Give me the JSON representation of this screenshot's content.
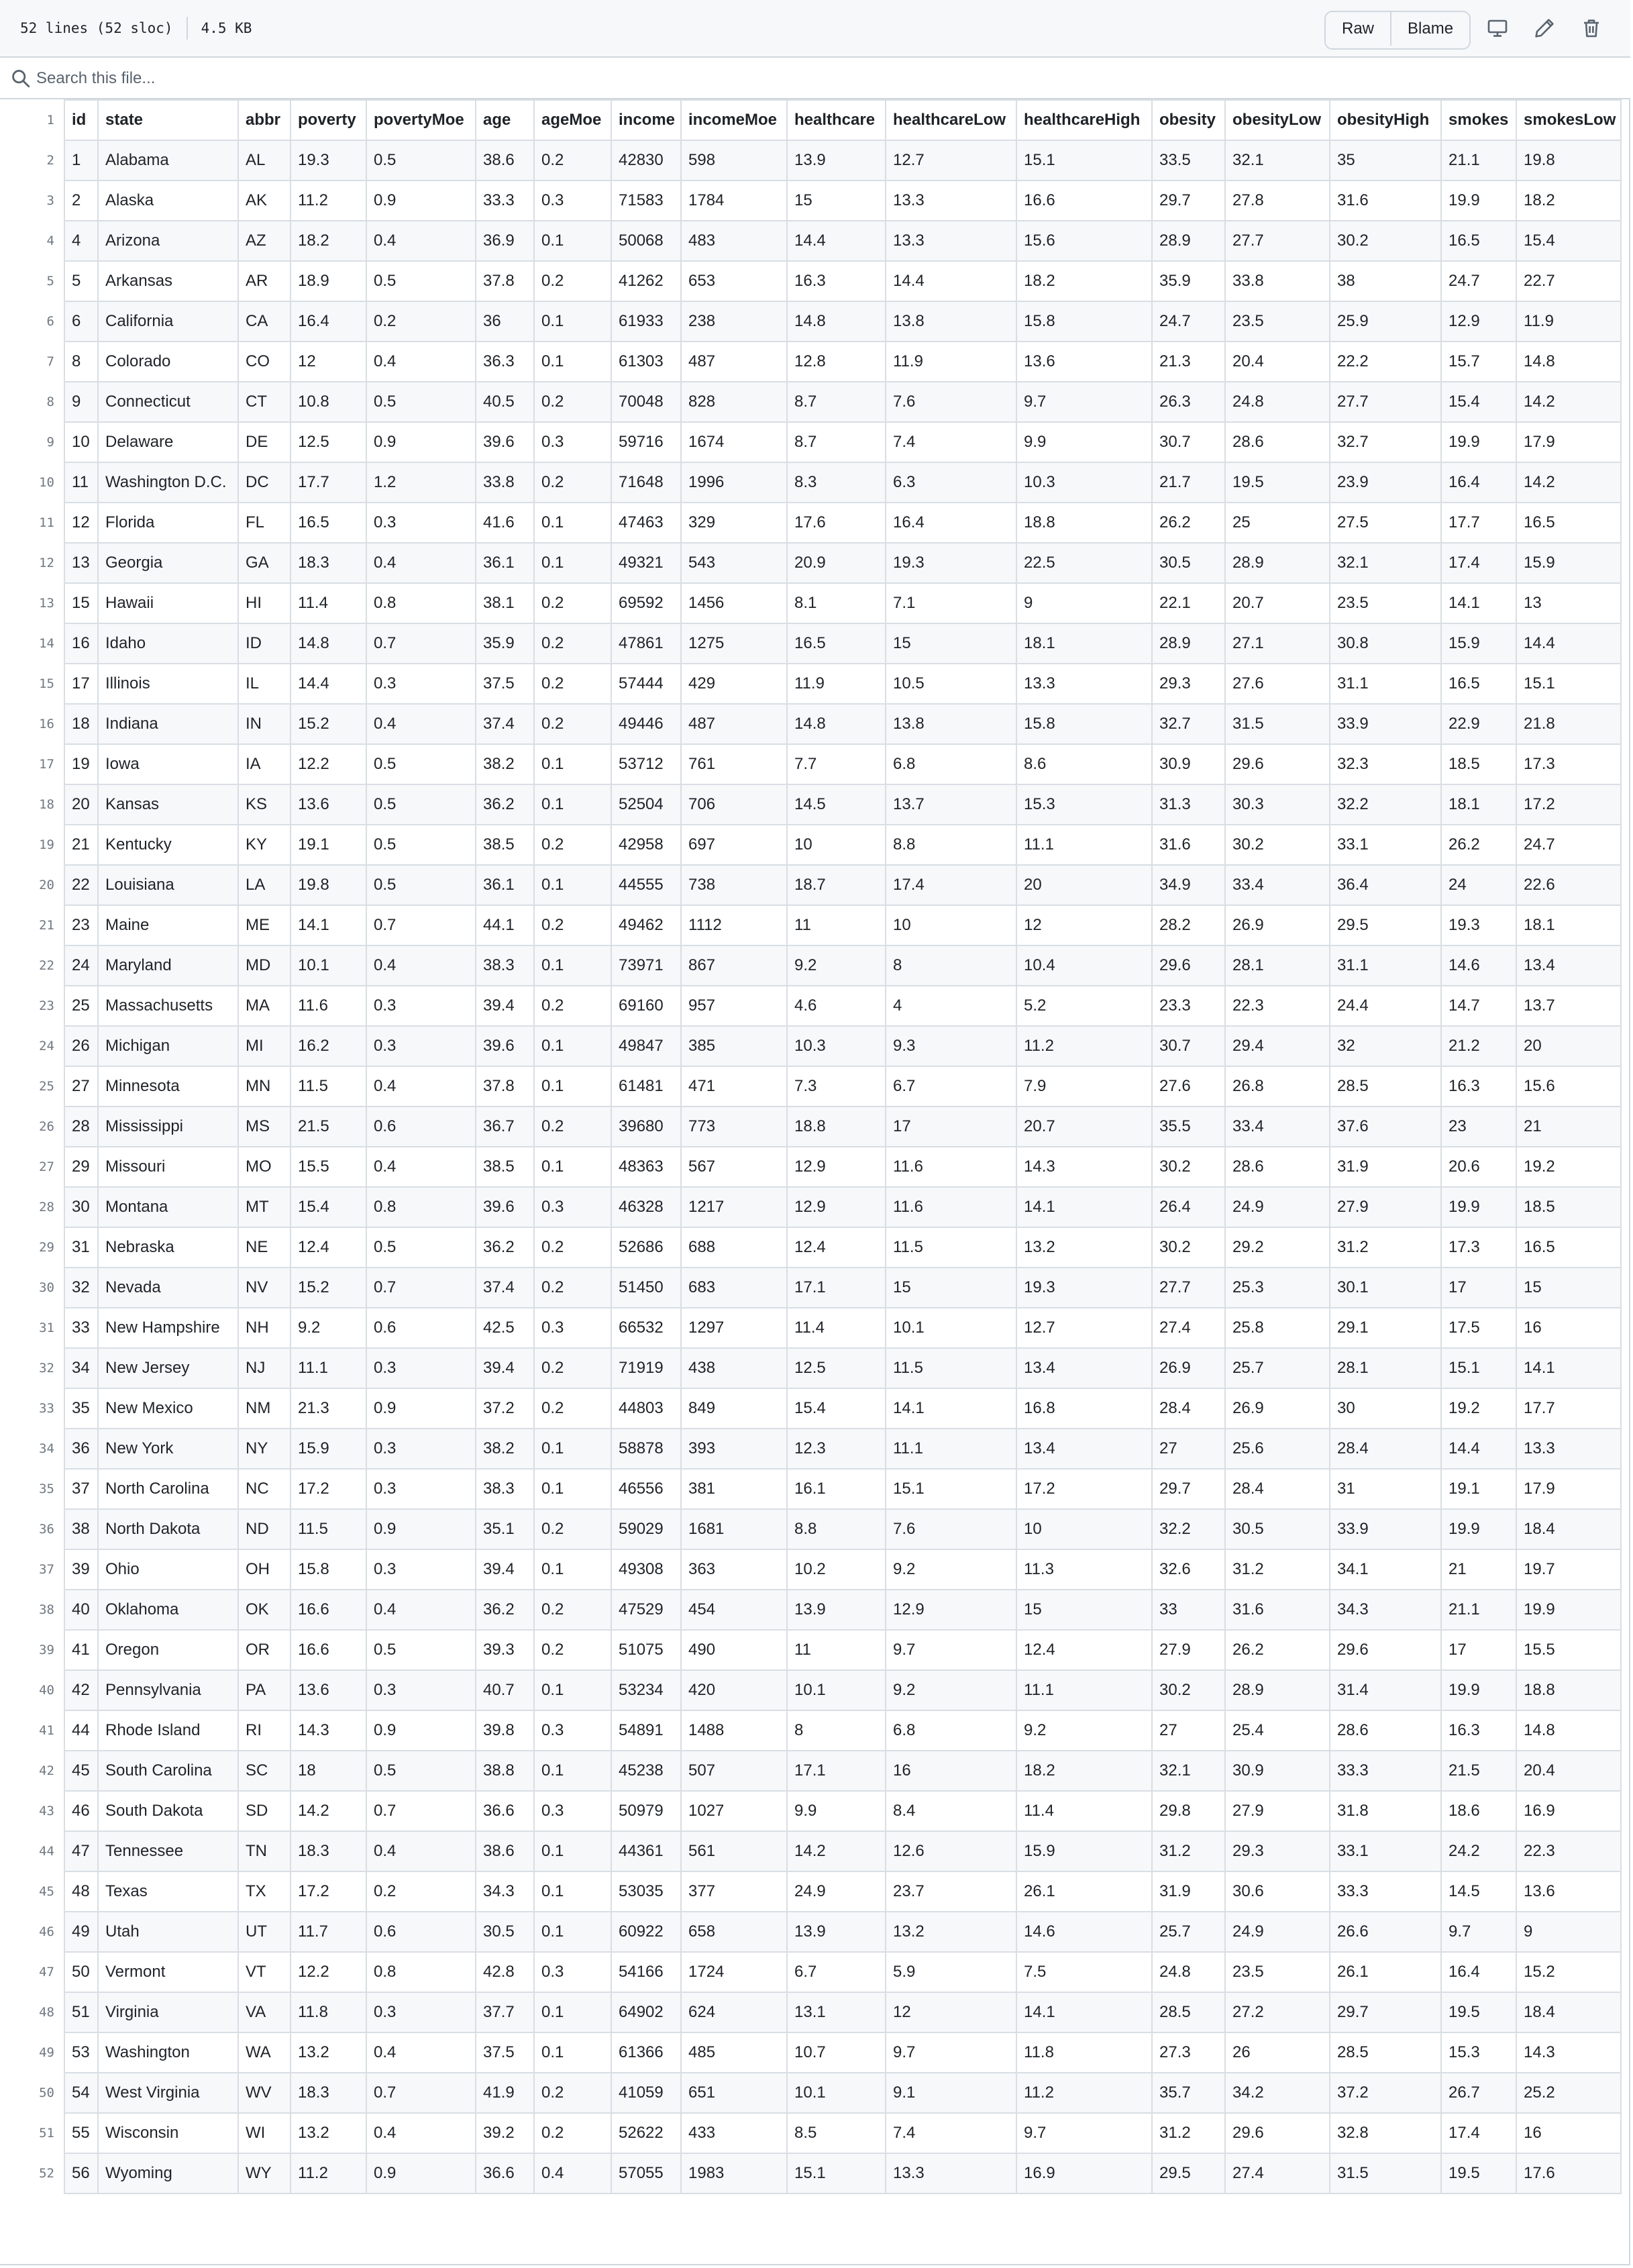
{
  "file_meta": {
    "lines": "52 lines (52 sloc)",
    "size": "4.5 KB"
  },
  "actions": {
    "raw": "Raw",
    "blame": "Blame"
  },
  "icons": {
    "display": "desktop-icon",
    "edit": "pencil-icon",
    "delete": "trash-icon",
    "search": "search-icon"
  },
  "search": {
    "placeholder": "Search this file..."
  },
  "table": {
    "rows": [
      [
        "id",
        "state",
        "abbr",
        "poverty",
        "povertyMoe",
        "age",
        "ageMoe",
        "income",
        "incomeMoe",
        "healthcare",
        "healthcareLow",
        "healthcareHigh",
        "obesity",
        "obesityLow",
        "obesityHigh",
        "smokes",
        "smokesLow"
      ],
      [
        "1",
        "Alabama",
        "AL",
        "19.3",
        "0.5",
        "38.6",
        "0.2",
        "42830",
        "598",
        "13.9",
        "12.7",
        "15.1",
        "33.5",
        "32.1",
        "35",
        "21.1",
        "19.8"
      ],
      [
        "2",
        "Alaska",
        "AK",
        "11.2",
        "0.9",
        "33.3",
        "0.3",
        "71583",
        "1784",
        "15",
        "13.3",
        "16.6",
        "29.7",
        "27.8",
        "31.6",
        "19.9",
        "18.2"
      ],
      [
        "4",
        "Arizona",
        "AZ",
        "18.2",
        "0.4",
        "36.9",
        "0.1",
        "50068",
        "483",
        "14.4",
        "13.3",
        "15.6",
        "28.9",
        "27.7",
        "30.2",
        "16.5",
        "15.4"
      ],
      [
        "5",
        "Arkansas",
        "AR",
        "18.9",
        "0.5",
        "37.8",
        "0.2",
        "41262",
        "653",
        "16.3",
        "14.4",
        "18.2",
        "35.9",
        "33.8",
        "38",
        "24.7",
        "22.7"
      ],
      [
        "6",
        "California",
        "CA",
        "16.4",
        "0.2",
        "36",
        "0.1",
        "61933",
        "238",
        "14.8",
        "13.8",
        "15.8",
        "24.7",
        "23.5",
        "25.9",
        "12.9",
        "11.9"
      ],
      [
        "8",
        "Colorado",
        "CO",
        "12",
        "0.4",
        "36.3",
        "0.1",
        "61303",
        "487",
        "12.8",
        "11.9",
        "13.6",
        "21.3",
        "20.4",
        "22.2",
        "15.7",
        "14.8"
      ],
      [
        "9",
        "Connecticut",
        "CT",
        "10.8",
        "0.5",
        "40.5",
        "0.2",
        "70048",
        "828",
        "8.7",
        "7.6",
        "9.7",
        "26.3",
        "24.8",
        "27.7",
        "15.4",
        "14.2"
      ],
      [
        "10",
        "Delaware",
        "DE",
        "12.5",
        "0.9",
        "39.6",
        "0.3",
        "59716",
        "1674",
        "8.7",
        "7.4",
        "9.9",
        "30.7",
        "28.6",
        "32.7",
        "19.9",
        "17.9"
      ],
      [
        "11",
        "Washington D.C.",
        "DC",
        "17.7",
        "1.2",
        "33.8",
        "0.2",
        "71648",
        "1996",
        "8.3",
        "6.3",
        "10.3",
        "21.7",
        "19.5",
        "23.9",
        "16.4",
        "14.2"
      ],
      [
        "12",
        "Florida",
        "FL",
        "16.5",
        "0.3",
        "41.6",
        "0.1",
        "47463",
        "329",
        "17.6",
        "16.4",
        "18.8",
        "26.2",
        "25",
        "27.5",
        "17.7",
        "16.5"
      ],
      [
        "13",
        "Georgia",
        "GA",
        "18.3",
        "0.4",
        "36.1",
        "0.1",
        "49321",
        "543",
        "20.9",
        "19.3",
        "22.5",
        "30.5",
        "28.9",
        "32.1",
        "17.4",
        "15.9"
      ],
      [
        "15",
        "Hawaii",
        "HI",
        "11.4",
        "0.8",
        "38.1",
        "0.2",
        "69592",
        "1456",
        "8.1",
        "7.1",
        "9",
        "22.1",
        "20.7",
        "23.5",
        "14.1",
        "13"
      ],
      [
        "16",
        "Idaho",
        "ID",
        "14.8",
        "0.7",
        "35.9",
        "0.2",
        "47861",
        "1275",
        "16.5",
        "15",
        "18.1",
        "28.9",
        "27.1",
        "30.8",
        "15.9",
        "14.4"
      ],
      [
        "17",
        "Illinois",
        "IL",
        "14.4",
        "0.3",
        "37.5",
        "0.2",
        "57444",
        "429",
        "11.9",
        "10.5",
        "13.3",
        "29.3",
        "27.6",
        "31.1",
        "16.5",
        "15.1"
      ],
      [
        "18",
        "Indiana",
        "IN",
        "15.2",
        "0.4",
        "37.4",
        "0.2",
        "49446",
        "487",
        "14.8",
        "13.8",
        "15.8",
        "32.7",
        "31.5",
        "33.9",
        "22.9",
        "21.8"
      ],
      [
        "19",
        "Iowa",
        "IA",
        "12.2",
        "0.5",
        "38.2",
        "0.1",
        "53712",
        "761",
        "7.7",
        "6.8",
        "8.6",
        "30.9",
        "29.6",
        "32.3",
        "18.5",
        "17.3"
      ],
      [
        "20",
        "Kansas",
        "KS",
        "13.6",
        "0.5",
        "36.2",
        "0.1",
        "52504",
        "706",
        "14.5",
        "13.7",
        "15.3",
        "31.3",
        "30.3",
        "32.2",
        "18.1",
        "17.2"
      ],
      [
        "21",
        "Kentucky",
        "KY",
        "19.1",
        "0.5",
        "38.5",
        "0.2",
        "42958",
        "697",
        "10",
        "8.8",
        "11.1",
        "31.6",
        "30.2",
        "33.1",
        "26.2",
        "24.7"
      ],
      [
        "22",
        "Louisiana",
        "LA",
        "19.8",
        "0.5",
        "36.1",
        "0.1",
        "44555",
        "738",
        "18.7",
        "17.4",
        "20",
        "34.9",
        "33.4",
        "36.4",
        "24",
        "22.6"
      ],
      [
        "23",
        "Maine",
        "ME",
        "14.1",
        "0.7",
        "44.1",
        "0.2",
        "49462",
        "1112",
        "11",
        "10",
        "12",
        "28.2",
        "26.9",
        "29.5",
        "19.3",
        "18.1"
      ],
      [
        "24",
        "Maryland",
        "MD",
        "10.1",
        "0.4",
        "38.3",
        "0.1",
        "73971",
        "867",
        "9.2",
        "8",
        "10.4",
        "29.6",
        "28.1",
        "31.1",
        "14.6",
        "13.4"
      ],
      [
        "25",
        "Massachusetts",
        "MA",
        "11.6",
        "0.3",
        "39.4",
        "0.2",
        "69160",
        "957",
        "4.6",
        "4",
        "5.2",
        "23.3",
        "22.3",
        "24.4",
        "14.7",
        "13.7"
      ],
      [
        "26",
        "Michigan",
        "MI",
        "16.2",
        "0.3",
        "39.6",
        "0.1",
        "49847",
        "385",
        "10.3",
        "9.3",
        "11.2",
        "30.7",
        "29.4",
        "32",
        "21.2",
        "20"
      ],
      [
        "27",
        "Minnesota",
        "MN",
        "11.5",
        "0.4",
        "37.8",
        "0.1",
        "61481",
        "471",
        "7.3",
        "6.7",
        "7.9",
        "27.6",
        "26.8",
        "28.5",
        "16.3",
        "15.6"
      ],
      [
        "28",
        "Mississippi",
        "MS",
        "21.5",
        "0.6",
        "36.7",
        "0.2",
        "39680",
        "773",
        "18.8",
        "17",
        "20.7",
        "35.5",
        "33.4",
        "37.6",
        "23",
        "21"
      ],
      [
        "29",
        "Missouri",
        "MO",
        "15.5",
        "0.4",
        "38.5",
        "0.1",
        "48363",
        "567",
        "12.9",
        "11.6",
        "14.3",
        "30.2",
        "28.6",
        "31.9",
        "20.6",
        "19.2"
      ],
      [
        "30",
        "Montana",
        "MT",
        "15.4",
        "0.8",
        "39.6",
        "0.3",
        "46328",
        "1217",
        "12.9",
        "11.6",
        "14.1",
        "26.4",
        "24.9",
        "27.9",
        "19.9",
        "18.5"
      ],
      [
        "31",
        "Nebraska",
        "NE",
        "12.4",
        "0.5",
        "36.2",
        "0.2",
        "52686",
        "688",
        "12.4",
        "11.5",
        "13.2",
        "30.2",
        "29.2",
        "31.2",
        "17.3",
        "16.5"
      ],
      [
        "32",
        "Nevada",
        "NV",
        "15.2",
        "0.7",
        "37.4",
        "0.2",
        "51450",
        "683",
        "17.1",
        "15",
        "19.3",
        "27.7",
        "25.3",
        "30.1",
        "17",
        "15"
      ],
      [
        "33",
        "New Hampshire",
        "NH",
        "9.2",
        "0.6",
        "42.5",
        "0.3",
        "66532",
        "1297",
        "11.4",
        "10.1",
        "12.7",
        "27.4",
        "25.8",
        "29.1",
        "17.5",
        "16"
      ],
      [
        "34",
        "New Jersey",
        "NJ",
        "11.1",
        "0.3",
        "39.4",
        "0.2",
        "71919",
        "438",
        "12.5",
        "11.5",
        "13.4",
        "26.9",
        "25.7",
        "28.1",
        "15.1",
        "14.1"
      ],
      [
        "35",
        "New Mexico",
        "NM",
        "21.3",
        "0.9",
        "37.2",
        "0.2",
        "44803",
        "849",
        "15.4",
        "14.1",
        "16.8",
        "28.4",
        "26.9",
        "30",
        "19.2",
        "17.7"
      ],
      [
        "36",
        "New York",
        "NY",
        "15.9",
        "0.3",
        "38.2",
        "0.1",
        "58878",
        "393",
        "12.3",
        "11.1",
        "13.4",
        "27",
        "25.6",
        "28.4",
        "14.4",
        "13.3"
      ],
      [
        "37",
        "North Carolina",
        "NC",
        "17.2",
        "0.3",
        "38.3",
        "0.1",
        "46556",
        "381",
        "16.1",
        "15.1",
        "17.2",
        "29.7",
        "28.4",
        "31",
        "19.1",
        "17.9"
      ],
      [
        "38",
        "North Dakota",
        "ND",
        "11.5",
        "0.9",
        "35.1",
        "0.2",
        "59029",
        "1681",
        "8.8",
        "7.6",
        "10",
        "32.2",
        "30.5",
        "33.9",
        "19.9",
        "18.4"
      ],
      [
        "39",
        "Ohio",
        "OH",
        "15.8",
        "0.3",
        "39.4",
        "0.1",
        "49308",
        "363",
        "10.2",
        "9.2",
        "11.3",
        "32.6",
        "31.2",
        "34.1",
        "21",
        "19.7"
      ],
      [
        "40",
        "Oklahoma",
        "OK",
        "16.6",
        "0.4",
        "36.2",
        "0.2",
        "47529",
        "454",
        "13.9",
        "12.9",
        "15",
        "33",
        "31.6",
        "34.3",
        "21.1",
        "19.9"
      ],
      [
        "41",
        "Oregon",
        "OR",
        "16.6",
        "0.5",
        "39.3",
        "0.2",
        "51075",
        "490",
        "11",
        "9.7",
        "12.4",
        "27.9",
        "26.2",
        "29.6",
        "17",
        "15.5"
      ],
      [
        "42",
        "Pennsylvania",
        "PA",
        "13.6",
        "0.3",
        "40.7",
        "0.1",
        "53234",
        "420",
        "10.1",
        "9.2",
        "11.1",
        "30.2",
        "28.9",
        "31.4",
        "19.9",
        "18.8"
      ],
      [
        "44",
        "Rhode Island",
        "RI",
        "14.3",
        "0.9",
        "39.8",
        "0.3",
        "54891",
        "1488",
        "8",
        "6.8",
        "9.2",
        "27",
        "25.4",
        "28.6",
        "16.3",
        "14.8"
      ],
      [
        "45",
        "South Carolina",
        "SC",
        "18",
        "0.5",
        "38.8",
        "0.1",
        "45238",
        "507",
        "17.1",
        "16",
        "18.2",
        "32.1",
        "30.9",
        "33.3",
        "21.5",
        "20.4"
      ],
      [
        "46",
        "South Dakota",
        "SD",
        "14.2",
        "0.7",
        "36.6",
        "0.3",
        "50979",
        "1027",
        "9.9",
        "8.4",
        "11.4",
        "29.8",
        "27.9",
        "31.8",
        "18.6",
        "16.9"
      ],
      [
        "47",
        "Tennessee",
        "TN",
        "18.3",
        "0.4",
        "38.6",
        "0.1",
        "44361",
        "561",
        "14.2",
        "12.6",
        "15.9",
        "31.2",
        "29.3",
        "33.1",
        "24.2",
        "22.3"
      ],
      [
        "48",
        "Texas",
        "TX",
        "17.2",
        "0.2",
        "34.3",
        "0.1",
        "53035",
        "377",
        "24.9",
        "23.7",
        "26.1",
        "31.9",
        "30.6",
        "33.3",
        "14.5",
        "13.6"
      ],
      [
        "49",
        "Utah",
        "UT",
        "11.7",
        "0.6",
        "30.5",
        "0.1",
        "60922",
        "658",
        "13.9",
        "13.2",
        "14.6",
        "25.7",
        "24.9",
        "26.6",
        "9.7",
        "9"
      ],
      [
        "50",
        "Vermont",
        "VT",
        "12.2",
        "0.8",
        "42.8",
        "0.3",
        "54166",
        "1724",
        "6.7",
        "5.9",
        "7.5",
        "24.8",
        "23.5",
        "26.1",
        "16.4",
        "15.2"
      ],
      [
        "51",
        "Virginia",
        "VA",
        "11.8",
        "0.3",
        "37.7",
        "0.1",
        "64902",
        "624",
        "13.1",
        "12",
        "14.1",
        "28.5",
        "27.2",
        "29.7",
        "19.5",
        "18.4"
      ],
      [
        "53",
        "Washington",
        "WA",
        "13.2",
        "0.4",
        "37.5",
        "0.1",
        "61366",
        "485",
        "10.7",
        "9.7",
        "11.8",
        "27.3",
        "26",
        "28.5",
        "15.3",
        "14.3"
      ],
      [
        "54",
        "West Virginia",
        "WV",
        "18.3",
        "0.7",
        "41.9",
        "0.2",
        "41059",
        "651",
        "10.1",
        "9.1",
        "11.2",
        "35.7",
        "34.2",
        "37.2",
        "26.7",
        "25.2"
      ],
      [
        "55",
        "Wisconsin",
        "WI",
        "13.2",
        "0.4",
        "39.2",
        "0.2",
        "52622",
        "433",
        "8.5",
        "7.4",
        "9.7",
        "31.2",
        "29.6",
        "32.8",
        "17.4",
        "16"
      ],
      [
        "56",
        "Wyoming",
        "WY",
        "11.2",
        "0.9",
        "36.6",
        "0.4",
        "57055",
        "1983",
        "15.1",
        "13.3",
        "16.9",
        "29.5",
        "27.4",
        "31.5",
        "19.5",
        "17.6"
      ]
    ]
  }
}
